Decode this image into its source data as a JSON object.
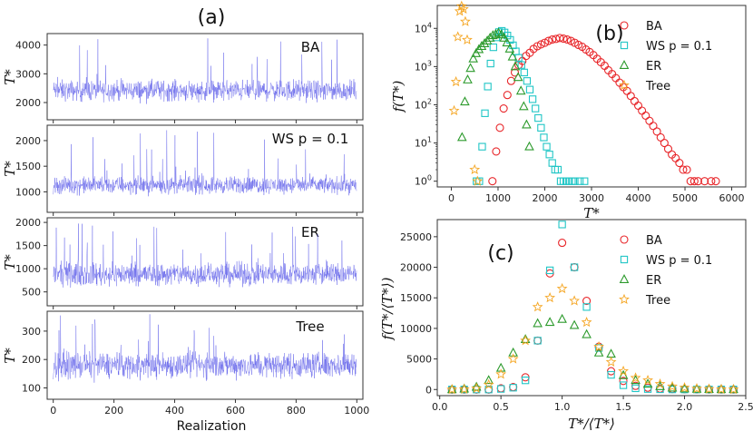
{
  "chart_data": [
    {
      "id": "a",
      "type": "line",
      "panel_label": "(a)",
      "xlabel": "Realization",
      "x_ticks": [
        "0",
        "200",
        "400",
        "600",
        "800",
        "1000"
      ],
      "xlim": [
        -20,
        1020
      ],
      "color": "#5a5ae8",
      "n_points": 1000,
      "subplots": [
        {
          "name": "BA",
          "ylabel": "T*",
          "ylim": [
            1400,
            4400
          ],
          "y_ticks": [
            "2000",
            "3000",
            "4000"
          ],
          "mean": 2420,
          "spread": 300,
          "spike_max": 4280
        },
        {
          "name": "WS p = 0.1",
          "ylabel": "T*",
          "ylim": [
            600,
            2300
          ],
          "y_ticks": [
            "1000",
            "1500",
            "2000"
          ],
          "mean": 1130,
          "spread": 140,
          "spike_max": 2250
        },
        {
          "name": "ER",
          "ylabel": "T*",
          "ylim": [
            200,
            2100
          ],
          "y_ticks": [
            "500",
            "1000",
            "1500",
            "2000"
          ],
          "mean": 880,
          "spread": 210,
          "spike_max": 2000
        },
        {
          "name": "Tree",
          "ylabel": "T*",
          "ylim": [
            60,
            370
          ],
          "y_ticks": [
            "100",
            "200",
            "300"
          ],
          "mean": 180,
          "spread": 38,
          "spike_max": 360
        }
      ]
    },
    {
      "id": "b",
      "type": "scatter",
      "panel_label": "(b)",
      "xlabel": "T*",
      "ylabel": "f(T*)",
      "y_scale": "log",
      "xlim": [
        -300,
        6300
      ],
      "ylim_log10": [
        -0.15,
        4.6
      ],
      "x_ticks": [
        0,
        1000,
        2000,
        3000,
        4000,
        5000,
        6000
      ],
      "y_ticks": [
        "10^0",
        "10^1",
        "10^2",
        "10^3",
        "10^4"
      ],
      "legend_position": "top-right",
      "series": [
        {
          "name": "BA",
          "marker": "circle",
          "color": "#e8262a",
          "x": [
            880,
            960,
            1040,
            1120,
            1200,
            1280,
            1360,
            1440,
            1520,
            1600,
            1680,
            1760,
            1840,
            1920,
            2000,
            2080,
            2160,
            2240,
            2320,
            2400,
            2480,
            2560,
            2640,
            2720,
            2800,
            2880,
            2960,
            3040,
            3120,
            3200,
            3280,
            3360,
            3440,
            3520,
            3600,
            3680,
            3760,
            3840,
            3920,
            4000,
            4080,
            4160,
            4240,
            4320,
            4400,
            4480,
            4560,
            4640,
            4720,
            4800,
            4880,
            4960,
            5040,
            5120,
            5200,
            5280,
            5420,
            5560,
            5660
          ],
          "y": [
            1,
            6,
            25,
            80,
            180,
            420,
            700,
            1100,
            1400,
            1900,
            2300,
            2900,
            3400,
            3800,
            4200,
            4700,
            5100,
            5300,
            5600,
            5400,
            5100,
            4700,
            4200,
            3700,
            3300,
            2800,
            2400,
            2000,
            1600,
            1300,
            1050,
            800,
            640,
            500,
            380,
            290,
            230,
            170,
            125,
            95,
            70,
            52,
            38,
            28,
            20,
            14,
            10,
            7,
            5,
            4,
            3,
            2,
            2,
            1,
            1,
            1,
            1,
            1,
            1
          ]
        },
        {
          "name": "WS p = 0.1",
          "marker": "square",
          "color": "#20c6c6",
          "x": [
            540,
            600,
            660,
            720,
            780,
            840,
            900,
            960,
            1020,
            1080,
            1140,
            1200,
            1260,
            1320,
            1380,
            1440,
            1500,
            1560,
            1620,
            1680,
            1740,
            1800,
            1860,
            1920,
            1980,
            2040,
            2100,
            2160,
            2220,
            2280,
            2340,
            2400,
            2460,
            2520,
            2580,
            2640,
            2750,
            2850
          ],
          "y": [
            1,
            1,
            8,
            60,
            300,
            1200,
            3200,
            5800,
            8000,
            8600,
            7800,
            6500,
            5000,
            3600,
            2500,
            1700,
            1100,
            700,
            420,
            250,
            140,
            80,
            45,
            25,
            14,
            8,
            5,
            3,
            2,
            2,
            1,
            1,
            1,
            1,
            1,
            1,
            1,
            1
          ]
        },
        {
          "name": "ER",
          "marker": "triangle",
          "color": "#2c9a2c",
          "x": [
            230,
            290,
            350,
            410,
            470,
            530,
            590,
            650,
            710,
            770,
            830,
            890,
            950,
            1010,
            1070,
            1130,
            1190,
            1250,
            1310,
            1370,
            1430,
            1490,
            1550,
            1610,
            1670
          ],
          "y": [
            14,
            120,
            450,
            900,
            1600,
            2200,
            2800,
            3400,
            4000,
            4700,
            5600,
            6500,
            7000,
            7600,
            6800,
            5600,
            4200,
            2900,
            1800,
            1000,
            520,
            230,
            90,
            30,
            8
          ]
        },
        {
          "name": "Tree",
          "marker": "star",
          "color": "#f5a623",
          "x": [
            60,
            100,
            140,
            180,
            220,
            260,
            300,
            340,
            500,
            560
          ],
          "y": [
            70,
            400,
            6000,
            28000,
            38000,
            32000,
            15000,
            5000,
            2,
            1
          ]
        }
      ]
    },
    {
      "id": "c",
      "type": "scatter",
      "panel_label": "(c)",
      "xlabel": "T*/⟨T*⟩",
      "ylabel": "f(T*/⟨T*⟩)",
      "xlim": [
        -0.02,
        2.5
      ],
      "ylim": [
        -1000,
        27800
      ],
      "x_ticks": [
        "0.0",
        "0.5",
        "1.0",
        "1.5",
        "2.0",
        "2.5"
      ],
      "y_ticks": [
        "0",
        "5000",
        "10000",
        "15000",
        "20000",
        "25000"
      ],
      "legend_position": "top-right",
      "x": [
        0.1,
        0.2,
        0.3,
        0.4,
        0.5,
        0.6,
        0.7,
        0.8,
        0.9,
        1.0,
        1.1,
        1.2,
        1.3,
        1.4,
        1.5,
        1.6,
        1.7,
        1.8,
        1.9,
        2.0,
        2.1,
        2.2,
        2.3,
        2.4
      ],
      "series": [
        {
          "name": "BA",
          "marker": "circle",
          "color": "#e8262a",
          "y": [
            0,
            0,
            0,
            0,
            200,
            400,
            2000,
            8000,
            19000,
            24000,
            20000,
            14500,
            7000,
            3000,
            1400,
            600,
            300,
            150,
            80,
            40,
            20,
            10,
            5,
            2
          ]
        },
        {
          "name": "WS p = 0.1",
          "marker": "square",
          "color": "#20c6c6",
          "y": [
            0,
            0,
            0,
            0,
            100,
            300,
            1500,
            8000,
            19500,
            27000,
            20000,
            13500,
            6800,
            2400,
            700,
            200,
            80,
            40,
            20,
            10,
            5,
            2,
            1,
            0
          ]
        },
        {
          "name": "ER",
          "marker": "triangle",
          "color": "#2c9a2c",
          "y": [
            0,
            100,
            400,
            1500,
            3500,
            6000,
            8200,
            10800,
            11000,
            11500,
            10500,
            9000,
            6000,
            5800,
            2300,
            1500,
            900,
            500,
            250,
            120,
            60,
            30,
            15,
            5
          ]
        },
        {
          "name": "Tree",
          "marker": "star",
          "color": "#f5a623",
          "y": [
            0,
            50,
            200,
            800,
            2500,
            5000,
            8000,
            13500,
            15000,
            16500,
            14500,
            11000,
            7000,
            4500,
            3000,
            1900,
            1500,
            900,
            500,
            300,
            150,
            80,
            30,
            10
          ]
        }
      ]
    }
  ]
}
